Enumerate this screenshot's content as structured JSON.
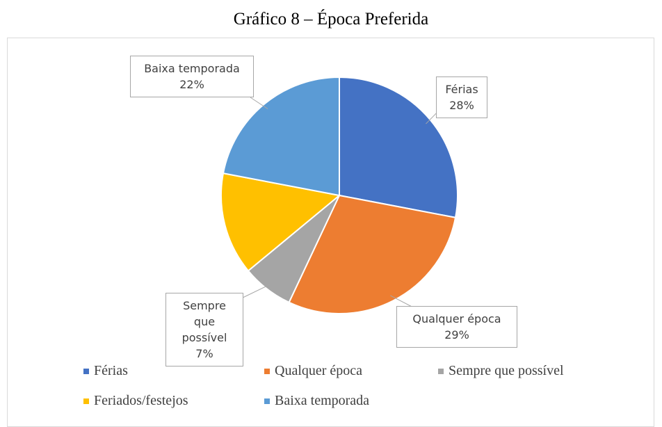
{
  "chart_data": {
    "type": "pie",
    "title": "Gráfico 8 – Época Preferida",
    "categories": [
      "Férias",
      "Qualquer época",
      "Sempre que possível",
      "Feriados/festejos",
      "Baixa temporada"
    ],
    "values": [
      28,
      29,
      7,
      14,
      22
    ],
    "value_labels": [
      "28%",
      "29%",
      "7%",
      null,
      "22%"
    ],
    "colors": [
      "#4472c4",
      "#ed7d31",
      "#a5a5a5",
      "#ffc000",
      "#5b9bd5"
    ],
    "legend": "bottom"
  }
}
